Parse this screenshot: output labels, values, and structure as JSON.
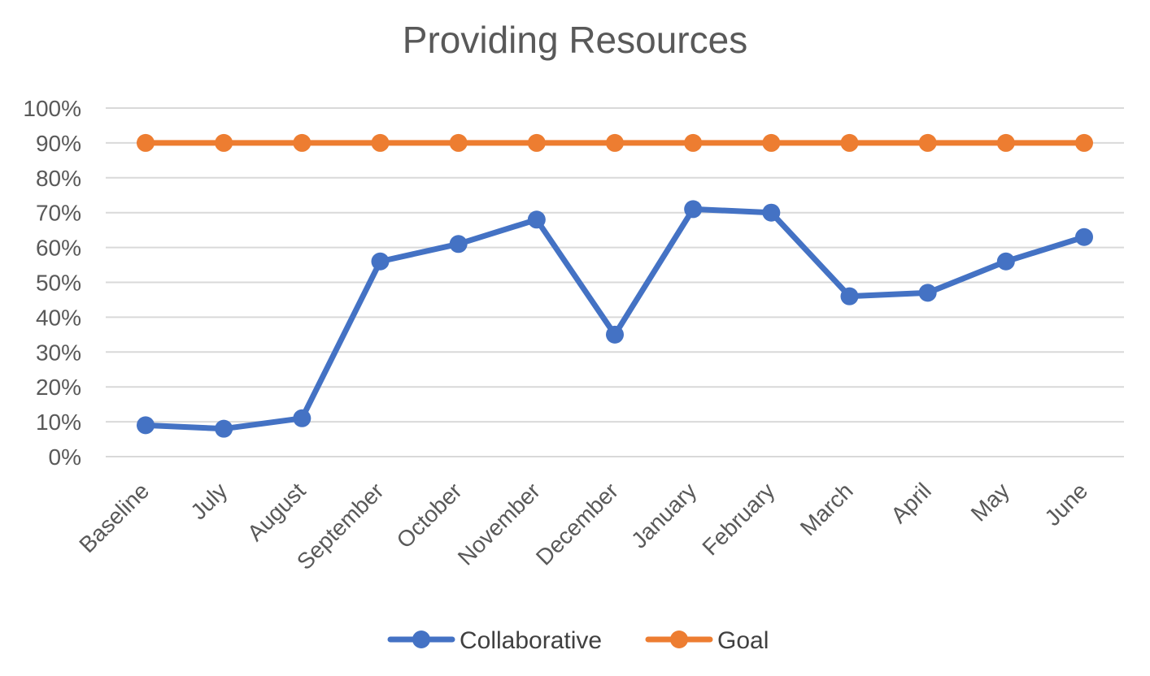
{
  "chart_data": {
    "type": "line",
    "title": "Providing Resources",
    "xlabel": "",
    "ylabel": "",
    "categories": [
      "Baseline",
      "July",
      "August",
      "September",
      "October",
      "November",
      "December",
      "January",
      "February",
      "March",
      "April",
      "May",
      "June"
    ],
    "yticks": [
      "0%",
      "10%",
      "20%",
      "30%",
      "40%",
      "50%",
      "60%",
      "70%",
      "80%",
      "90%",
      "100%"
    ],
    "ylim": [
      0,
      100
    ],
    "grid": true,
    "legend_position": "bottom",
    "series": [
      {
        "name": "Collaborative",
        "color": "#4472C4",
        "values": [
          9,
          8,
          11,
          56,
          61,
          68,
          35,
          71,
          70,
          46,
          47,
          56,
          63
        ]
      },
      {
        "name": "Goal",
        "color": "#ED7D31",
        "values": [
          90,
          90,
          90,
          90,
          90,
          90,
          90,
          90,
          90,
          90,
          90,
          90,
          90
        ]
      }
    ]
  }
}
